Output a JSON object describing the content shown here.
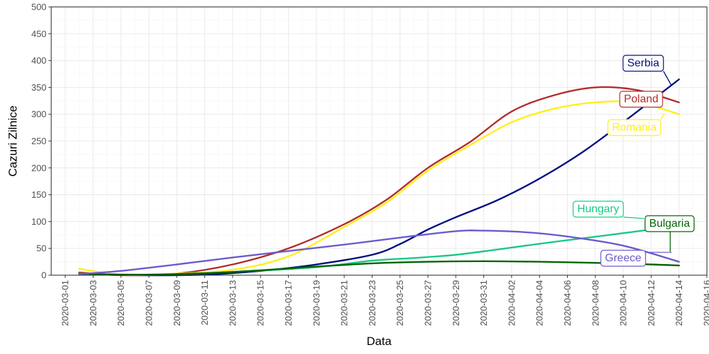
{
  "chart_data": {
    "type": "line",
    "xlabel": "Data",
    "ylabel": "Cazuri Zilnice",
    "ylim": [
      0,
      500
    ],
    "yticks": [
      0,
      50,
      100,
      150,
      200,
      250,
      300,
      350,
      400,
      450,
      500
    ],
    "xlim": [
      "2020-02-29",
      "2020-04-16"
    ],
    "xticks": [
      "2020-03-01",
      "2020-03-03",
      "2020-03-05",
      "2020-03-07",
      "2020-03-09",
      "2020-03-11",
      "2020-03-13",
      "2020-03-15",
      "2020-03-17",
      "2020-03-19",
      "2020-03-21",
      "2020-03-23",
      "2020-03-25",
      "2020-03-27",
      "2020-03-29",
      "2020-03-31",
      "2020-04-02",
      "2020-04-04",
      "2020-04-06",
      "2020-04-08",
      "2020-04-10",
      "2020-04-12",
      "2020-04-14",
      "2020-04-16"
    ],
    "grid": true,
    "legend": "none",
    "series": [
      {
        "name": "Serbia",
        "color": "#000f80",
        "points": [
          [
            "2020-03-02",
            3
          ],
          [
            "2020-03-06",
            0
          ],
          [
            "2020-03-11",
            1
          ],
          [
            "2020-03-15",
            8
          ],
          [
            "2020-03-19",
            20
          ],
          [
            "2020-03-23",
            38
          ],
          [
            "2020-03-25",
            58
          ],
          [
            "2020-03-27",
            85
          ],
          [
            "2020-03-29",
            108
          ],
          [
            "2020-04-01",
            140
          ],
          [
            "2020-04-04",
            180
          ],
          [
            "2020-04-07",
            228
          ],
          [
            "2020-04-10",
            285
          ],
          [
            "2020-04-14",
            365
          ]
        ]
      },
      {
        "name": "Poland",
        "color": "#b22b2b",
        "points": [
          [
            "2020-03-02",
            5
          ],
          [
            "2020-03-05",
            0
          ],
          [
            "2020-03-09",
            3
          ],
          [
            "2020-03-13",
            20
          ],
          [
            "2020-03-17",
            50
          ],
          [
            "2020-03-21",
            95
          ],
          [
            "2020-03-24",
            140
          ],
          [
            "2020-03-27",
            200
          ],
          [
            "2020-03-30",
            248
          ],
          [
            "2020-04-02",
            305
          ],
          [
            "2020-04-05",
            335
          ],
          [
            "2020-04-08",
            350
          ],
          [
            "2020-04-11",
            345
          ],
          [
            "2020-04-14",
            322
          ]
        ]
      },
      {
        "name": "Romania",
        "color": "#ffef17",
        "points": [
          [
            "2020-03-02",
            12
          ],
          [
            "2020-03-05",
            1
          ],
          [
            "2020-03-09",
            3
          ],
          [
            "2020-03-13",
            10
          ],
          [
            "2020-03-17",
            35
          ],
          [
            "2020-03-21",
            90
          ],
          [
            "2020-03-24",
            135
          ],
          [
            "2020-03-27",
            195
          ],
          [
            "2020-03-30",
            242
          ],
          [
            "2020-04-02",
            285
          ],
          [
            "2020-04-05",
            310
          ],
          [
            "2020-04-08",
            322
          ],
          [
            "2020-04-11",
            322
          ],
          [
            "2020-04-14",
            300
          ]
        ]
      },
      {
        "name": "Hungary",
        "color": "#19c985",
        "points": [
          [
            "2020-03-02",
            3
          ],
          [
            "2020-03-07",
            1
          ],
          [
            "2020-03-13",
            6
          ],
          [
            "2020-03-19",
            15
          ],
          [
            "2020-03-23",
            27
          ],
          [
            "2020-03-26",
            32
          ],
          [
            "2020-03-29",
            38
          ],
          [
            "2020-04-01",
            48
          ],
          [
            "2020-04-05",
            62
          ],
          [
            "2020-04-09",
            75
          ],
          [
            "2020-04-14",
            92
          ]
        ]
      },
      {
        "name": "Bulgaria",
        "color": "#006400",
        "points": [
          [
            "2020-03-02",
            2
          ],
          [
            "2020-03-07",
            1
          ],
          [
            "2020-03-13",
            6
          ],
          [
            "2020-03-19",
            16
          ],
          [
            "2020-03-23",
            22
          ],
          [
            "2020-03-27",
            25
          ],
          [
            "2020-03-31",
            26
          ],
          [
            "2020-04-04",
            25
          ],
          [
            "2020-04-08",
            23
          ],
          [
            "2020-04-12",
            20
          ],
          [
            "2020-04-14",
            18
          ]
        ]
      },
      {
        "name": "Greece",
        "color": "#6a5acd",
        "points": [
          [
            "2020-03-02",
            2
          ],
          [
            "2020-03-05",
            8
          ],
          [
            "2020-03-09",
            20
          ],
          [
            "2020-03-13",
            33
          ],
          [
            "2020-03-17",
            45
          ],
          [
            "2020-03-21",
            57
          ],
          [
            "2020-03-25",
            70
          ],
          [
            "2020-03-29",
            82
          ],
          [
            "2020-03-31",
            83
          ],
          [
            "2020-04-03",
            80
          ],
          [
            "2020-04-06",
            72
          ],
          [
            "2020-04-10",
            55
          ],
          [
            "2020-04-14",
            25
          ]
        ]
      }
    ],
    "labels": [
      {
        "text": "Serbia",
        "color": "#000f80"
      },
      {
        "text": "Poland",
        "color": "#b22b2b"
      },
      {
        "text": "Romania",
        "color": "#ffef17"
      },
      {
        "text": "Hungary",
        "color": "#19c985"
      },
      {
        "text": "Bulgaria",
        "color": "#006400"
      },
      {
        "text": "Greece",
        "color": "#6a5acd"
      }
    ]
  }
}
